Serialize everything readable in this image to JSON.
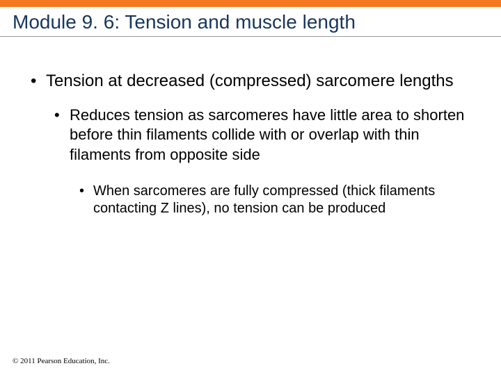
{
  "colors": {
    "accent_bar": "#f47920",
    "title_color": "#17365d",
    "underline_color": "#999999",
    "text_color": "#000000",
    "background": "#ffffff"
  },
  "title": "Module 9. 6: Tension and muscle length",
  "bullets": {
    "level1": {
      "marker": "•",
      "text": "Tension at decreased (compressed) sarcomere lengths"
    },
    "level2": {
      "marker": "•",
      "text": "Reduces tension as sarcomeres have little area to shorten before thin filaments collide with or overlap with thin filaments from opposite side"
    },
    "level3": {
      "marker": "•",
      "text": "When sarcomeres are fully compressed (thick filaments contacting Z lines), no tension can be produced"
    }
  },
  "copyright": "© 2011 Pearson Education, Inc."
}
